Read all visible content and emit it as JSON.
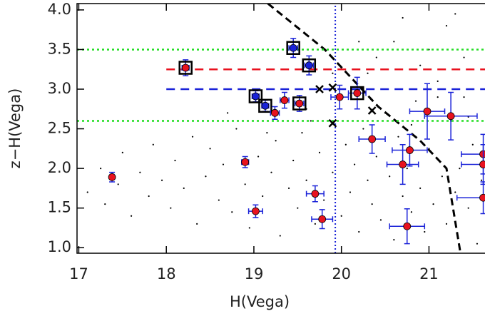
{
  "chart_data": {
    "type": "scatter",
    "xlabel": "H(Vega)",
    "ylabel": "z−H(Vega)",
    "xlim": [
      16.98,
      21.64
    ],
    "ylim": [
      0.93,
      4.08
    ],
    "xticks": [
      17,
      18,
      19,
      20,
      21
    ],
    "yticks": [
      {
        "value": 1,
        "label": "1.0"
      },
      1.5,
      {
        "value": 2,
        "label": "2.0"
      },
      2.5,
      {
        "value": 3,
        "label": "3.0"
      },
      3.5,
      {
        "value": 4,
        "label": "4.0"
      }
    ],
    "field": {
      "color": "#000000",
      "x": [
        17.1,
        17.25,
        17.3,
        17.45,
        17.5,
        17.6,
        17.7,
        17.8,
        17.85,
        17.95,
        18.05,
        18.1,
        18.2,
        18.3,
        18.35,
        18.45,
        18.5,
        18.6,
        18.65,
        18.75,
        18.8,
        18.9,
        18.95,
        19.05,
        19.1,
        19.2,
        19.25,
        19.3,
        19.4,
        19.45,
        19.5,
        19.55,
        19.6,
        19.7,
        19.75,
        19.8,
        19.85,
        19.9,
        20.0,
        20.05,
        20.1,
        20.15,
        20.2,
        20.25,
        20.3,
        20.35,
        20.4,
        20.45,
        20.5,
        20.55,
        20.6,
        20.65,
        20.7,
        20.75,
        20.8,
        20.85,
        20.9,
        20.95,
        21.0,
        21.05,
        21.1,
        21.15,
        21.2,
        21.25,
        21.3,
        21.35,
        21.4,
        21.45,
        21.5,
        21.55,
        21.6,
        20.6,
        20.9,
        21.2,
        21.4,
        20.3,
        20.7,
        21.0,
        21.3,
        21.5,
        19.6,
        19.9,
        20.2,
        20.4,
        20.8,
        21.1,
        21.45,
        18.7,
        19.15,
        19.65
      ],
      "y": [
        1.7,
        2.0,
        1.55,
        1.8,
        2.2,
        1.4,
        1.95,
        1.65,
        2.3,
        1.85,
        1.5,
        2.1,
        1.75,
        2.4,
        1.3,
        1.9,
        2.25,
        1.6,
        2.05,
        1.45,
        2.5,
        1.8,
        1.25,
        2.15,
        1.65,
        1.95,
        2.35,
        1.15,
        1.75,
        2.1,
        1.5,
        2.45,
        1.85,
        1.3,
        2.2,
        1.6,
        2.6,
        1.95,
        1.4,
        2.3,
        1.7,
        2.05,
        1.2,
        2.5,
        1.85,
        1.55,
        2.15,
        1.35,
        2.7,
        1.9,
        1.1,
        2.4,
        1.65,
        2.0,
        1.45,
        2.85,
        1.75,
        1.2,
        2.25,
        1.55,
        3.1,
        1.9,
        1.3,
        2.6,
        1.7,
        2.0,
        3.4,
        1.5,
        2.3,
        1.05,
        1.85,
        3.6,
        3.3,
        3.8,
        2.9,
        3.2,
        3.9,
        3.5,
        3.95,
        3.0,
        2.75,
        3.2,
        3.6,
        3.4,
        2.55,
        2.9,
        2.65,
        2.7,
        2.45,
        2.6
      ]
    },
    "sources": {
      "x": [
        17.38,
        18.22,
        18.9,
        19.02,
        19.02,
        19.13,
        19.24,
        19.35,
        19.45,
        19.52,
        19.63,
        19.7,
        19.78,
        19.98,
        20.18,
        20.35,
        20.7,
        20.78,
        20.75,
        20.98,
        21.25,
        21.62,
        21.62,
        21.62
      ],
      "y": [
        1.89,
        3.27,
        2.08,
        1.46,
        2.91,
        2.79,
        2.7,
        2.86,
        3.52,
        2.82,
        3.3,
        1.68,
        1.36,
        2.9,
        2.95,
        2.37,
        2.05,
        2.23,
        1.27,
        2.72,
        2.66,
        2.18,
        2.05,
        1.63
      ],
      "xerr": [
        0.02,
        0.04,
        0.04,
        0.08,
        0.04,
        0.04,
        0.05,
        0.05,
        0.05,
        0.05,
        0.05,
        0.1,
        0.12,
        0.1,
        0.1,
        0.15,
        0.18,
        0.2,
        0.2,
        0.2,
        0.3,
        0.25,
        0.25,
        0.3
      ],
      "yerr": [
        0.06,
        0.1,
        0.07,
        0.08,
        0.07,
        0.07,
        0.08,
        0.1,
        0.12,
        0.1,
        0.12,
        0.1,
        0.12,
        0.15,
        0.2,
        0.18,
        0.25,
        0.2,
        0.22,
        0.35,
        0.3,
        0.25,
        0.25,
        0.2
      ],
      "fill": [
        "#e8121f",
        "#e8121f",
        "#e8121f",
        "#e8121f",
        "#1a22d8",
        "#1a22d8",
        "#e8121f",
        "#e8121f",
        "#1a22d8",
        "#e8121f",
        "#1a22d8",
        "#e8121f",
        "#e8121f",
        "#e8121f",
        "#e8121f",
        "#e8121f",
        "#e8121f",
        "#e8121f",
        "#e8121f",
        "#e8121f",
        "#e8121f",
        "#e8121f",
        "#e8121f",
        "#e8121f"
      ],
      "boxed": [
        false,
        true,
        false,
        false,
        true,
        true,
        false,
        false,
        true,
        true,
        true,
        false,
        false,
        false,
        true,
        false,
        false,
        false,
        false,
        false,
        false,
        false,
        false,
        false
      ],
      "errcolor": "#1a22d8"
    },
    "crosses": {
      "color": "#000000",
      "x": [
        19.75,
        19.9,
        19.9,
        20.35
      ],
      "y": [
        3.0,
        3.02,
        2.57,
        2.73
      ]
    },
    "lines": [
      {
        "color": "#000000",
        "dash": "10,6",
        "width": 3,
        "x": [
          19.16,
          19.81,
          20.42,
          20.9,
          21.2,
          21.36
        ],
        "y": [
          4.08,
          3.5,
          2.78,
          2.35,
          2.0,
          0.93
        ]
      },
      {
        "color": "#e8121f",
        "dash": "12,8",
        "width": 2.5,
        "x": [
          18,
          21.64
        ],
        "y": [
          3.25,
          3.25
        ]
      },
      {
        "color": "#1a22d8",
        "dash": "12,8",
        "width": 2.5,
        "x": [
          18,
          21.64
        ],
        "y": [
          3.0,
          3.0
        ]
      },
      {
        "color": "#22dd22",
        "dash": "3,4",
        "width": 2.5,
        "x": [
          16.98,
          21.64
        ],
        "y": [
          3.5,
          3.5
        ]
      },
      {
        "color": "#22dd22",
        "dash": "3,4",
        "width": 2.5,
        "x": [
          16.98,
          21.64
        ],
        "y": [
          2.6,
          2.6
        ]
      },
      {
        "color": "#1a22d8",
        "dash": "2,3",
        "width": 2,
        "x": [
          19.93,
          19.93
        ],
        "y": [
          0.93,
          4.08
        ]
      }
    ]
  }
}
